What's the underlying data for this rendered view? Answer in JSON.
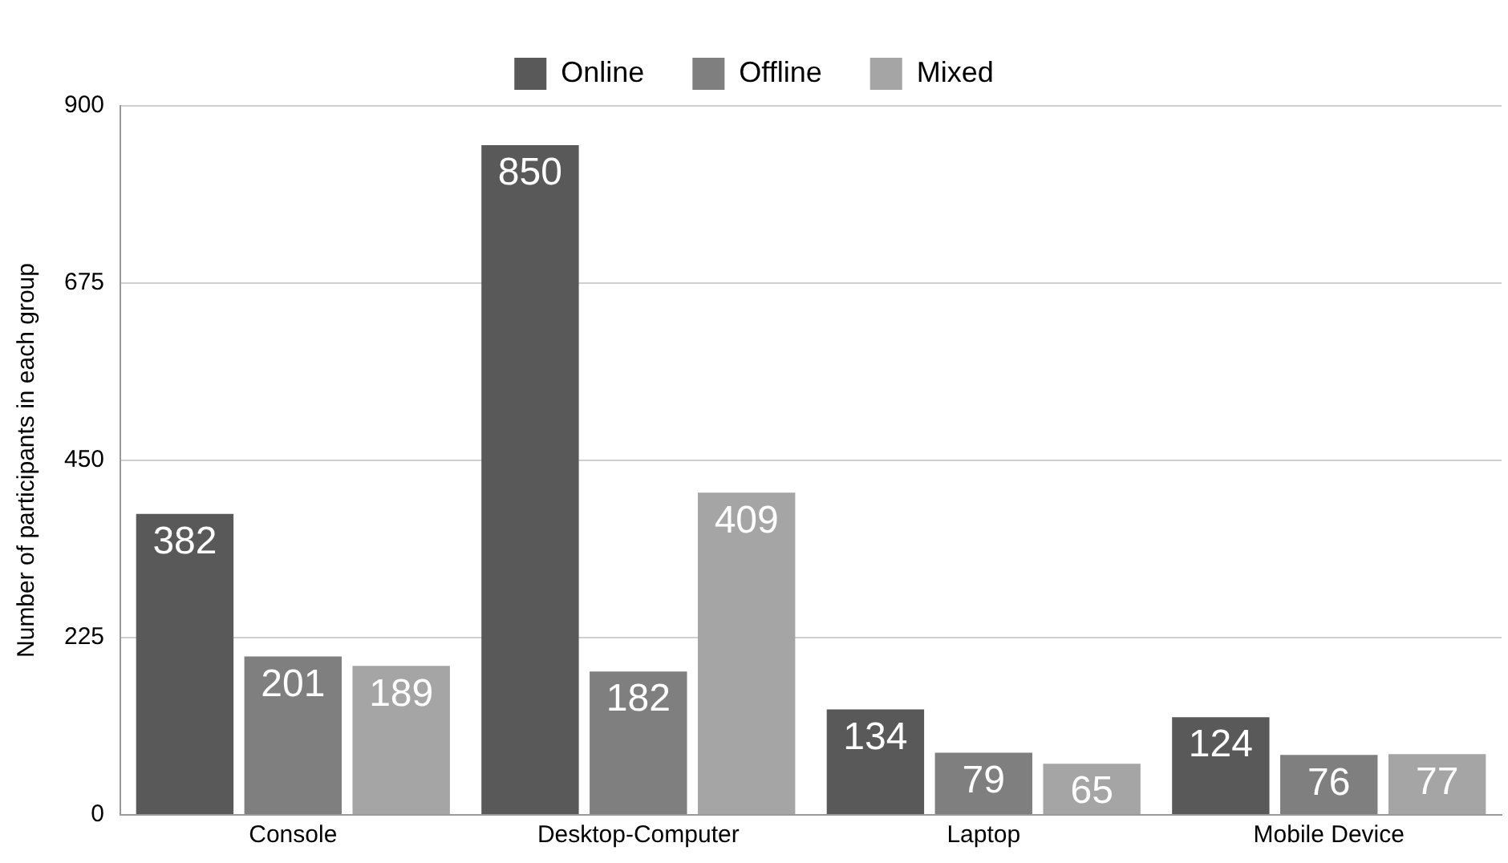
{
  "chart_data": {
    "type": "bar",
    "ylabel": "Number of participants in each group",
    "categories": [
      "Console",
      "Desktop-Computer",
      "Laptop",
      "Mobile Device"
    ],
    "series": [
      {
        "name": "Online",
        "color": "#595959",
        "values": [
          382,
          850,
          134,
          124
        ]
      },
      {
        "name": "Offline",
        "color": "#7f7f7f",
        "values": [
          201,
          182,
          79,
          76
        ]
      },
      {
        "name": "Mixed",
        "color": "#a5a5a5",
        "values": [
          189,
          409,
          65,
          77
        ]
      }
    ],
    "ylim": [
      0,
      900
    ],
    "yticks": [
      0,
      225,
      450,
      675,
      900
    ],
    "grid": "y",
    "legend": "top",
    "data_labels": true
  }
}
